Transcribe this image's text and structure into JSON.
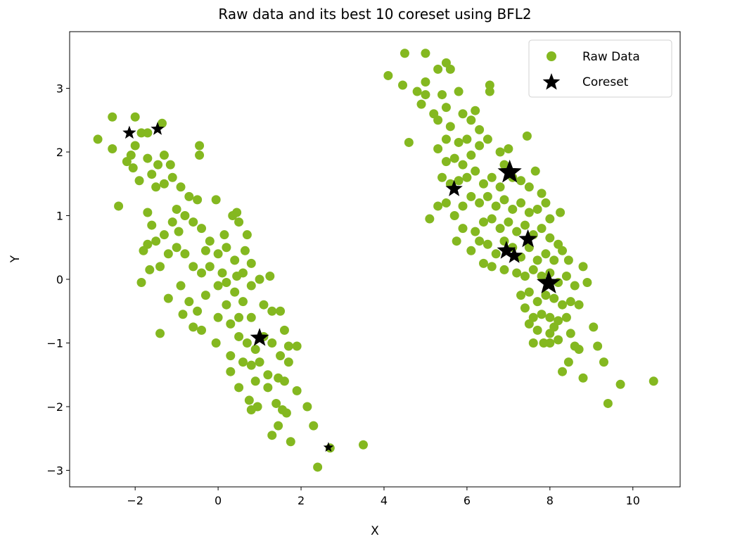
{
  "chart_data": {
    "type": "scatter",
    "title": "Raw data and its best 10 coreset using BFL2",
    "xlabel": "X",
    "ylabel": "Y",
    "xlim": [
      -3.58,
      11.14
    ],
    "ylim": [
      -3.26,
      3.89
    ],
    "xticks": [
      -2,
      0,
      2,
      4,
      6,
      8,
      10
    ],
    "yticks": [
      -3,
      -2,
      -1,
      0,
      1,
      2,
      3
    ],
    "grid": false,
    "legend": {
      "position": "top-right",
      "entries": [
        "Raw Data",
        "Coreset"
      ]
    },
    "series": [
      {
        "name": "Raw Data",
        "marker": "circle",
        "color": "#84b820",
        "points": [
          [
            -2.9,
            2.2
          ],
          [
            -2.55,
            2.55
          ],
          [
            -2.0,
            2.55
          ],
          [
            -2.55,
            2.05
          ],
          [
            -2.4,
            1.15
          ],
          [
            -1.35,
            2.45
          ],
          [
            -1.7,
            2.3
          ],
          [
            -1.85,
            2.3
          ],
          [
            -2.2,
            1.85
          ],
          [
            -2.1,
            1.95
          ],
          [
            -2.0,
            2.1
          ],
          [
            -2.05,
            1.75
          ],
          [
            -1.9,
            1.55
          ],
          [
            -1.7,
            1.9
          ],
          [
            -1.45,
            1.8
          ],
          [
            -1.3,
            1.95
          ],
          [
            -1.15,
            1.8
          ],
          [
            -0.45,
            2.1
          ],
          [
            -0.45,
            1.95
          ],
          [
            -1.6,
            1.65
          ],
          [
            -1.5,
            1.45
          ],
          [
            -1.3,
            1.5
          ],
          [
            -1.1,
            1.6
          ],
          [
            -0.9,
            1.45
          ],
          [
            -0.7,
            1.3
          ],
          [
            -0.5,
            1.25
          ],
          [
            -0.05,
            1.25
          ],
          [
            -1.7,
            1.05
          ],
          [
            -1.6,
            0.85
          ],
          [
            -1.7,
            0.55
          ],
          [
            -1.5,
            0.6
          ],
          [
            -1.3,
            0.7
          ],
          [
            -1.1,
            0.9
          ],
          [
            -1.0,
            1.1
          ],
          [
            -0.8,
            1.0
          ],
          [
            -0.6,
            0.9
          ],
          [
            -0.4,
            0.8
          ],
          [
            -0.2,
            0.6
          ],
          [
            0.0,
            0.4
          ],
          [
            0.15,
            0.7
          ],
          [
            0.35,
            1.0
          ],
          [
            0.45,
            1.05
          ],
          [
            0.5,
            0.9
          ],
          [
            -1.85,
            -0.05
          ],
          [
            -1.2,
            -0.3
          ],
          [
            -1.65,
            0.15
          ],
          [
            -1.4,
            0.2
          ],
          [
            -1.2,
            0.4
          ],
          [
            -1.0,
            0.5
          ],
          [
            -0.8,
            0.4
          ],
          [
            -0.6,
            0.2
          ],
          [
            -0.4,
            0.1
          ],
          [
            -0.2,
            0.2
          ],
          [
            0.2,
            0.5
          ],
          [
            0.4,
            0.3
          ],
          [
            0.6,
            0.1
          ],
          [
            0.7,
            0.7
          ],
          [
            0.65,
            0.45
          ],
          [
            0.8,
            0.25
          ],
          [
            -0.9,
            -0.1
          ],
          [
            -0.7,
            -0.35
          ],
          [
            -0.5,
            -0.5
          ],
          [
            -0.3,
            -0.25
          ],
          [
            0.0,
            -0.1
          ],
          [
            0.2,
            -0.05
          ],
          [
            0.4,
            -0.2
          ],
          [
            0.6,
            -0.35
          ],
          [
            0.8,
            -0.1
          ],
          [
            1.0,
            0.0
          ],
          [
            1.25,
            0.05
          ],
          [
            -1.4,
            -0.85
          ],
          [
            -0.85,
            -0.55
          ],
          [
            -0.6,
            -0.75
          ],
          [
            -0.4,
            -0.8
          ],
          [
            0.0,
            -0.6
          ],
          [
            0.2,
            -0.4
          ],
          [
            0.5,
            -0.6
          ],
          [
            0.8,
            -0.6
          ],
          [
            1.1,
            -0.4
          ],
          [
            1.3,
            -0.5
          ],
          [
            1.5,
            -0.5
          ],
          [
            1.6,
            -0.8
          ],
          [
            1.7,
            -1.05
          ],
          [
            1.9,
            -1.05
          ],
          [
            -0.05,
            -1.0
          ],
          [
            0.3,
            -1.2
          ],
          [
            0.5,
            -0.9
          ],
          [
            0.7,
            -1.0
          ],
          [
            0.9,
            -1.1
          ],
          [
            1.1,
            -0.9
          ],
          [
            1.3,
            -1.0
          ],
          [
            1.5,
            -1.2
          ],
          [
            1.7,
            -1.3
          ],
          [
            0.3,
            -1.45
          ],
          [
            0.6,
            -1.3
          ],
          [
            0.8,
            -1.35
          ],
          [
            1.0,
            -1.3
          ],
          [
            1.2,
            -1.5
          ],
          [
            1.45,
            -1.55
          ],
          [
            1.6,
            -1.6
          ],
          [
            0.5,
            -1.7
          ],
          [
            0.9,
            -1.6
          ],
          [
            1.2,
            -1.7
          ],
          [
            0.75,
            -1.9
          ],
          [
            0.95,
            -2.0
          ],
          [
            0.8,
            -2.05
          ],
          [
            1.4,
            -1.95
          ],
          [
            1.55,
            -2.05
          ],
          [
            1.65,
            -2.1
          ],
          [
            1.9,
            -1.75
          ],
          [
            2.15,
            -2.0
          ],
          [
            2.3,
            -2.3
          ],
          [
            1.75,
            -2.55
          ],
          [
            1.3,
            -2.45
          ],
          [
            1.45,
            -2.3
          ],
          [
            2.4,
            -2.95
          ],
          [
            2.7,
            -2.65
          ],
          [
            3.5,
            -2.6
          ],
          [
            -1.8,
            0.45
          ],
          [
            -0.95,
            0.75
          ],
          [
            -0.3,
            0.45
          ],
          [
            0.1,
            0.1
          ],
          [
            0.3,
            -0.7
          ],
          [
            0.45,
            0.05
          ],
          [
            4.5,
            3.55
          ],
          [
            5.0,
            3.55
          ],
          [
            4.1,
            3.2
          ],
          [
            4.45,
            3.05
          ],
          [
            5.5,
            3.4
          ],
          [
            5.6,
            3.3
          ],
          [
            5.3,
            3.3
          ],
          [
            4.6,
            2.15
          ],
          [
            5.1,
            0.95
          ],
          [
            5.75,
            0.6
          ],
          [
            6.55,
            3.05
          ],
          [
            6.55,
            2.95
          ],
          [
            7.45,
            2.25
          ],
          [
            8.25,
            1.05
          ],
          [
            8.8,
            0.2
          ],
          [
            8.9,
            -0.05
          ],
          [
            9.05,
            -0.75
          ],
          [
            9.15,
            -1.05
          ],
          [
            9.3,
            -1.3
          ],
          [
            8.8,
            -1.55
          ],
          [
            9.7,
            -1.65
          ],
          [
            10.5,
            -1.6
          ],
          [
            9.4,
            -1.95
          ],
          [
            8.3,
            -1.45
          ],
          [
            8.45,
            -1.3
          ],
          [
            8.7,
            -1.1
          ],
          [
            7.85,
            -1.0
          ],
          [
            8.1,
            -0.75
          ],
          [
            7.6,
            -1.0
          ],
          [
            5.0,
            3.1
          ],
          [
            4.8,
            2.95
          ],
          [
            4.9,
            2.75
          ],
          [
            5.0,
            2.9
          ],
          [
            5.2,
            2.6
          ],
          [
            5.4,
            2.9
          ],
          [
            5.3,
            2.5
          ],
          [
            5.5,
            2.7
          ],
          [
            5.6,
            2.4
          ],
          [
            5.8,
            2.95
          ],
          [
            5.9,
            2.6
          ],
          [
            6.1,
            2.5
          ],
          [
            6.3,
            2.35
          ],
          [
            6.2,
            2.65
          ],
          [
            6.0,
            2.2
          ],
          [
            5.8,
            2.15
          ],
          [
            5.5,
            2.2
          ],
          [
            5.3,
            2.05
          ],
          [
            5.5,
            1.85
          ],
          [
            5.7,
            1.9
          ],
          [
            5.9,
            1.8
          ],
          [
            6.1,
            1.95
          ],
          [
            6.3,
            2.1
          ],
          [
            6.5,
            2.2
          ],
          [
            6.8,
            2.0
          ],
          [
            7.0,
            2.05
          ],
          [
            6.9,
            1.8
          ],
          [
            5.4,
            1.6
          ],
          [
            5.6,
            1.5
          ],
          [
            5.8,
            1.55
          ],
          [
            6.0,
            1.6
          ],
          [
            6.2,
            1.7
          ],
          [
            6.4,
            1.5
          ],
          [
            6.6,
            1.6
          ],
          [
            6.8,
            1.45
          ],
          [
            7.1,
            1.6
          ],
          [
            7.3,
            1.55
          ],
          [
            7.5,
            1.45
          ],
          [
            7.65,
            1.7
          ],
          [
            7.8,
            1.35
          ],
          [
            5.3,
            1.15
          ],
          [
            5.5,
            1.2
          ],
          [
            5.7,
            1.0
          ],
          [
            5.9,
            1.15
          ],
          [
            6.1,
            1.3
          ],
          [
            6.3,
            1.2
          ],
          [
            6.5,
            1.3
          ],
          [
            6.7,
            1.15
          ],
          [
            6.9,
            1.25
          ],
          [
            7.1,
            1.1
          ],
          [
            7.3,
            1.2
          ],
          [
            7.5,
            1.05
          ],
          [
            7.7,
            1.1
          ],
          [
            7.9,
            1.2
          ],
          [
            8.0,
            0.95
          ],
          [
            5.9,
            0.8
          ],
          [
            6.2,
            0.75
          ],
          [
            6.4,
            0.9
          ],
          [
            6.6,
            0.95
          ],
          [
            6.8,
            0.8
          ],
          [
            7.0,
            0.9
          ],
          [
            7.2,
            0.75
          ],
          [
            7.4,
            0.85
          ],
          [
            7.6,
            0.7
          ],
          [
            7.8,
            0.8
          ],
          [
            8.0,
            0.65
          ],
          [
            8.2,
            0.55
          ],
          [
            6.1,
            0.45
          ],
          [
            6.3,
            0.6
          ],
          [
            6.5,
            0.55
          ],
          [
            6.7,
            0.4
          ],
          [
            6.9,
            0.6
          ],
          [
            7.1,
            0.5
          ],
          [
            7.3,
            0.35
          ],
          [
            7.5,
            0.5
          ],
          [
            7.7,
            0.3
          ],
          [
            7.9,
            0.4
          ],
          [
            8.1,
            0.3
          ],
          [
            8.3,
            0.45
          ],
          [
            8.45,
            0.3
          ],
          [
            6.4,
            0.25
          ],
          [
            6.6,
            0.2
          ],
          [
            6.9,
            0.15
          ],
          [
            7.2,
            0.1
          ],
          [
            7.4,
            0.05
          ],
          [
            7.6,
            0.15
          ],
          [
            7.8,
            0.05
          ],
          [
            8.0,
            0.1
          ],
          [
            8.2,
            -0.05
          ],
          [
            8.4,
            0.05
          ],
          [
            8.6,
            -0.1
          ],
          [
            7.3,
            -0.25
          ],
          [
            7.5,
            -0.2
          ],
          [
            7.7,
            -0.35
          ],
          [
            7.9,
            -0.25
          ],
          [
            8.1,
            -0.3
          ],
          [
            8.3,
            -0.4
          ],
          [
            8.5,
            -0.35
          ],
          [
            8.7,
            -0.4
          ],
          [
            7.4,
            -0.45
          ],
          [
            7.6,
            -0.6
          ],
          [
            7.8,
            -0.55
          ],
          [
            8.0,
            -0.6
          ],
          [
            8.2,
            -0.65
          ],
          [
            8.4,
            -0.6
          ],
          [
            7.5,
            -0.7
          ],
          [
            7.7,
            -0.8
          ],
          [
            8.0,
            -0.85
          ],
          [
            8.2,
            -0.95
          ],
          [
            8.5,
            -0.85
          ],
          [
            8.6,
            -1.05
          ],
          [
            8.0,
            -1.0
          ]
        ]
      },
      {
        "name": "Coreset",
        "marker": "star",
        "color": "#000000",
        "points": [
          {
            "x": -2.14,
            "y": 2.3,
            "weight": 2
          },
          {
            "x": -1.46,
            "y": 2.36,
            "weight": 2
          },
          {
            "x": 1.0,
            "y": -0.92,
            "weight": 3.5
          },
          {
            "x": 2.66,
            "y": -2.64,
            "weight": 1
          },
          {
            "x": 5.69,
            "y": 1.42,
            "weight": 3
          },
          {
            "x": 7.03,
            "y": 1.68,
            "weight": 5
          },
          {
            "x": 7.47,
            "y": 0.63,
            "weight": 3.5
          },
          {
            "x": 6.95,
            "y": 0.45,
            "weight": 3.5
          },
          {
            "x": 7.14,
            "y": 0.37,
            "weight": 3
          },
          {
            "x": 7.97,
            "y": -0.06,
            "weight": 5
          }
        ]
      }
    ]
  }
}
